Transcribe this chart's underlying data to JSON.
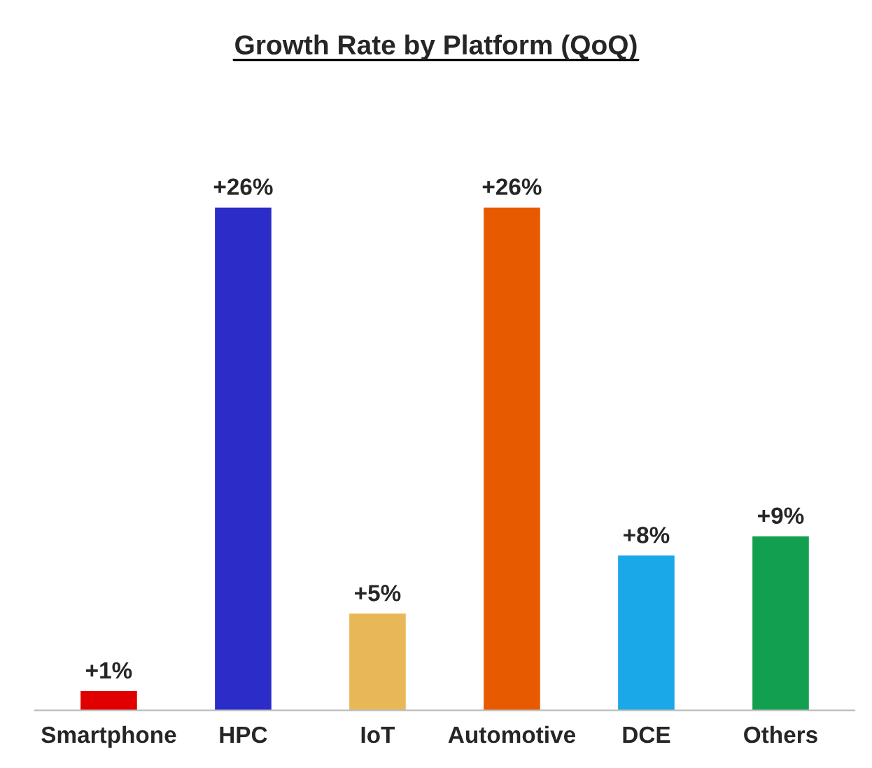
{
  "chart_data": {
    "type": "bar",
    "title": "Growth Rate by Platform (QoQ)",
    "categories": [
      "Smartphone",
      "HPC",
      "IoT",
      "Automotive",
      "DCE",
      "Others"
    ],
    "values": [
      1,
      26,
      5,
      26,
      8,
      9
    ],
    "colors": [
      "#e00000",
      "#2c2cc8",
      "#e8b858",
      "#e85a00",
      "#1aa8e8",
      "#12a050"
    ],
    "value_labels": [
      "+1%",
      "+26%",
      "+5%",
      "+26%",
      "+8%",
      "+9%"
    ]
  }
}
